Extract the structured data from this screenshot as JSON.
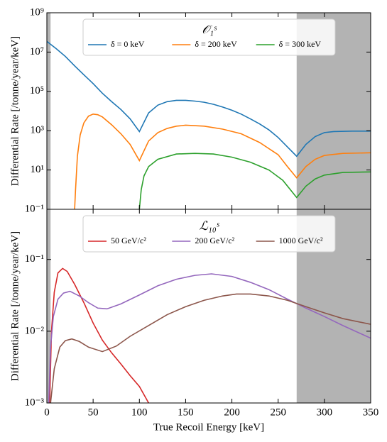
{
  "chart_data": [
    {
      "type": "line",
      "log_y": true,
      "grid": false,
      "xlim": [
        0,
        350
      ],
      "ylim": [
        0.1,
        1000000000
      ],
      "ylabel": "Differential Rate [/tonne/year/keV]",
      "yticks": [
        {
          "value": 0.1,
          "label": "10⁻¹"
        },
        {
          "value": 10,
          "label": "10¹"
        },
        {
          "value": 1000,
          "label": "10³"
        },
        {
          "value": 100000,
          "label": "10⁵"
        },
        {
          "value": 10000000,
          "label": "10⁷"
        },
        {
          "value": 1000000000,
          "label": "10⁹"
        }
      ],
      "legend_title": "𝒪₁ˢ",
      "legend_loc": "upper center",
      "shaded": [
        [
          0,
          4
        ],
        [
          270,
          350
        ]
      ],
      "shade_color": "#b3b3b3",
      "series": [
        {
          "name": "δ = 0 keV",
          "color": "#1f77b4",
          "x": [
            0,
            10,
            20,
            30,
            40,
            50,
            60,
            70,
            80,
            90,
            100,
            110,
            120,
            130,
            140,
            150,
            160,
            170,
            180,
            190,
            200,
            210,
            220,
            230,
            240,
            250,
            260,
            270,
            280,
            290,
            300,
            310,
            330,
            350
          ],
          "values": [
            35000000,
            15000000,
            6000000,
            2000000,
            700000,
            250000,
            80000,
            30000,
            12000,
            4000,
            900,
            8000,
            20000,
            30000,
            35000,
            35000,
            32000,
            28000,
            22000,
            16000,
            11000,
            7000,
            4000,
            2200,
            1100,
            450,
            150,
            50,
            200,
            500,
            800,
            900,
            950,
            950
          ]
        },
        {
          "name": "δ = 200 keV",
          "color": "#ff7f0e",
          "x": [
            30,
            31,
            33,
            36,
            40,
            45,
            50,
            55,
            60,
            70,
            80,
            90,
            100,
            110,
            120,
            130,
            140,
            150,
            170,
            190,
            210,
            230,
            250,
            260,
            270,
            280,
            290,
            300,
            320,
            350
          ],
          "values": [
            0.1,
            1,
            50,
            600,
            2500,
            5500,
            7000,
            6500,
            5000,
            2000,
            700,
            200,
            30,
            300,
            800,
            1300,
            1700,
            1900,
            1700,
            1200,
            700,
            250,
            60,
            15,
            4,
            15,
            35,
            55,
            70,
            75
          ]
        },
        {
          "name": "δ = 300 keV",
          "color": "#2ca02c",
          "x": [
            100,
            102,
            105,
            110,
            120,
            140,
            160,
            180,
            200,
            220,
            240,
            255,
            270,
            280,
            290,
            300,
            320,
            350
          ],
          "values": [
            0.1,
            1,
            5,
            15,
            35,
            65,
            70,
            65,
            45,
            25,
            10,
            3,
            0.4,
            1.5,
            3.5,
            5.5,
            7.5,
            8
          ]
        }
      ]
    },
    {
      "type": "line",
      "log_y": true,
      "grid": false,
      "xlim": [
        0,
        350
      ],
      "ylim": [
        0.001,
        0.5
      ],
      "xlabel": "True Recoil Energy [keV]",
      "ylabel": "Differential Rate [/tonne/year/keV]",
      "xticks": [
        0,
        50,
        100,
        150,
        200,
        250,
        300,
        350
      ],
      "yticks": [
        {
          "value": 0.001,
          "label": "10⁻³"
        },
        {
          "value": 0.01,
          "label": "10⁻²"
        },
        {
          "value": 0.1,
          "label": "10⁻¹"
        }
      ],
      "legend_title": "ℒ₁₀ˢ",
      "legend_loc": "upper center",
      "shaded": [
        [
          0,
          4
        ],
        [
          270,
          350
        ]
      ],
      "shade_color": "#b3b3b3",
      "series": [
        {
          "name": "50 GeV/c²",
          "color": "#d62728",
          "x": [
            3,
            5,
            8,
            12,
            17,
            22,
            30,
            40,
            50,
            60,
            70,
            80,
            90,
            100,
            110
          ],
          "values": [
            0.001,
            0.01,
            0.035,
            0.065,
            0.075,
            0.068,
            0.045,
            0.025,
            0.013,
            0.0075,
            0.005,
            0.0035,
            0.0024,
            0.0017,
            0.001
          ]
        },
        {
          "name": "200 GeV/c²",
          "color": "#9467bd",
          "x": [
            2,
            4,
            7,
            12,
            18,
            25,
            35,
            45,
            55,
            65,
            80,
            100,
            120,
            140,
            160,
            178,
            200,
            220,
            240,
            260,
            280,
            300,
            320,
            350
          ],
          "values": [
            0.001,
            0.006,
            0.016,
            0.028,
            0.034,
            0.036,
            0.031,
            0.025,
            0.021,
            0.0205,
            0.024,
            0.032,
            0.043,
            0.053,
            0.06,
            0.063,
            0.058,
            0.048,
            0.038,
            0.028,
            0.021,
            0.016,
            0.012,
            0.008
          ]
        },
        {
          "name": "1000 GeV/c²",
          "color": "#8c564b",
          "x": [
            4,
            8,
            14,
            20,
            27,
            35,
            45,
            60,
            75,
            90,
            110,
            130,
            150,
            170,
            190,
            205,
            220,
            240,
            260,
            280,
            300,
            320,
            350
          ],
          "values": [
            0.001,
            0.003,
            0.006,
            0.0074,
            0.0078,
            0.0072,
            0.006,
            0.0052,
            0.0062,
            0.0085,
            0.012,
            0.017,
            0.022,
            0.027,
            0.031,
            0.033,
            0.033,
            0.031,
            0.027,
            0.022,
            0.018,
            0.015,
            0.0125
          ]
        }
      ]
    }
  ]
}
